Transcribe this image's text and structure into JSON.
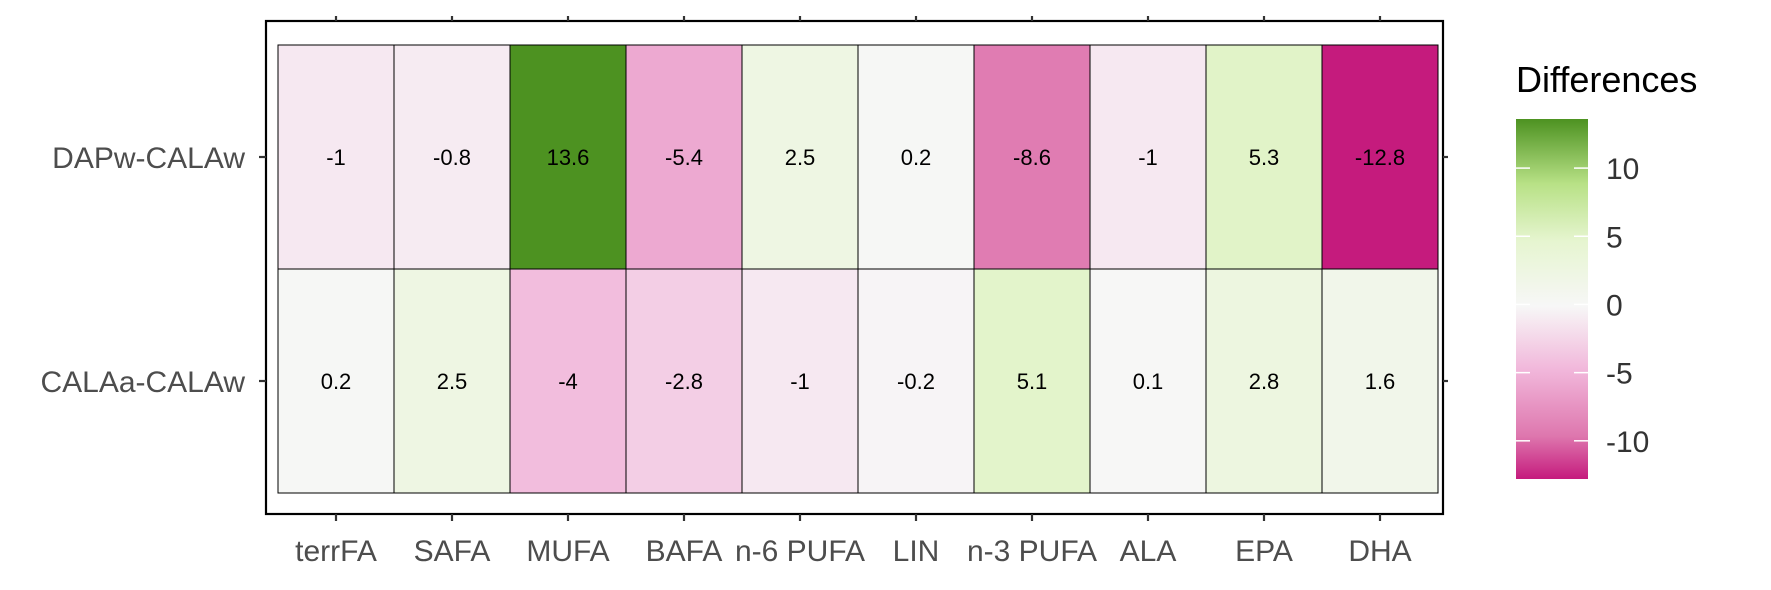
{
  "chart_data": {
    "type": "heatmap",
    "rows": [
      "DAPw-CALAw",
      "CALAa-CALAw"
    ],
    "columns": [
      "terrFA",
      "SAFA",
      "MUFA",
      "BAFA",
      "n-6 PUFA",
      "LIN",
      "n-3 PUFA",
      "ALA",
      "EPA",
      "DHA"
    ],
    "values": [
      [
        -1,
        -0.8,
        13.6,
        -5.4,
        2.5,
        0.2,
        -8.6,
        -1,
        5.3,
        -12.8
      ],
      [
        0.2,
        2.5,
        -4,
        -2.8,
        -1,
        -0.2,
        5.1,
        0.1,
        2.8,
        1.6
      ]
    ],
    "value_labels": [
      [
        "-1",
        "-0.8",
        "13.6",
        "-5.4",
        "2.5",
        "0.2",
        "-8.6",
        "-1",
        "5.3",
        "-12.8"
      ],
      [
        "0.2",
        "2.5",
        "-4",
        "-2.8",
        "-1",
        "-0.2",
        "5.1",
        "0.1",
        "2.8",
        "1.6"
      ]
    ],
    "legend": {
      "title": "Differences",
      "ticks": [
        10,
        5,
        0,
        -5,
        -10
      ],
      "tick_labels": [
        "10",
        "5",
        "0",
        "-5",
        "-10"
      ],
      "range": [
        -12.8,
        13.6
      ],
      "placement": "right",
      "colormap": "PiYG"
    },
    "colors": {
      "negative_extreme": "#c51b7d",
      "neutral": "#f7f7f7",
      "positive_extreme": "#4d9221"
    },
    "grid": false,
    "title": "",
    "xlabel": "",
    "ylabel": ""
  }
}
